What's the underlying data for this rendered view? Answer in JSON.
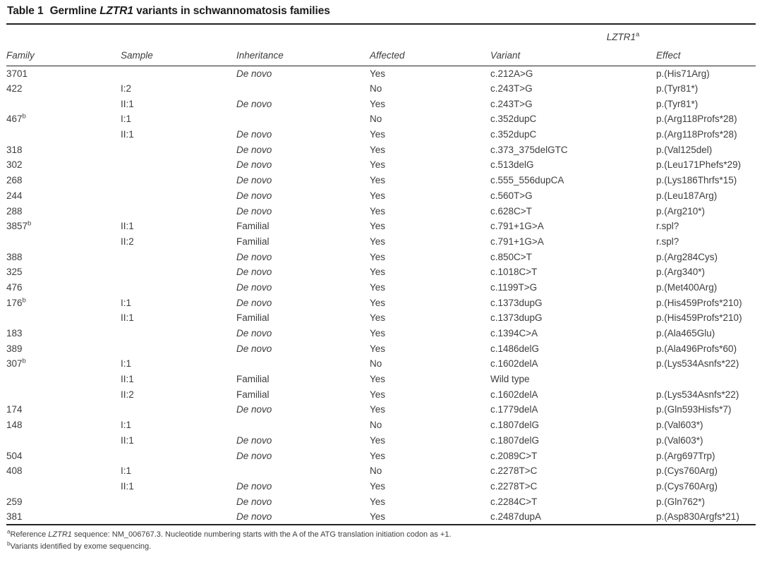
{
  "title": {
    "number": "Table 1",
    "pre_gene": "Germline",
    "gene": "LZTR1",
    "post_gene": "variants in schwannomatosis families"
  },
  "span_header": {
    "gene": "LZTR1",
    "sup": "a"
  },
  "columns": [
    "Family",
    "Sample",
    "Inheritance",
    "Affected",
    "Variant",
    "Effect"
  ],
  "rows": [
    {
      "family": "3701",
      "family_sup": "",
      "sample": "",
      "inheritance": "De novo",
      "inh_italic": true,
      "affected": "Yes",
      "variant": "c.212A>G",
      "effect": "p.(His71Arg)"
    },
    {
      "family": "422",
      "family_sup": "",
      "sample": "I:2",
      "inheritance": "",
      "inh_italic": false,
      "affected": "No",
      "variant": "c.243T>G",
      "effect": "p.(Tyr81*)"
    },
    {
      "family": "",
      "family_sup": "",
      "sample": "II:1",
      "inheritance": "De novo",
      "inh_italic": true,
      "affected": "Yes",
      "variant": "c.243T>G",
      "effect": "p.(Tyr81*)"
    },
    {
      "family": "467",
      "family_sup": "b",
      "sample": "I:1",
      "inheritance": "",
      "inh_italic": false,
      "affected": "No",
      "variant": "c.352dupC",
      "effect": "p.(Arg118Profs*28)"
    },
    {
      "family": "",
      "family_sup": "",
      "sample": "II:1",
      "inheritance": "De novo",
      "inh_italic": true,
      "affected": "Yes",
      "variant": "c.352dupC",
      "effect": "p.(Arg118Profs*28)"
    },
    {
      "family": "318",
      "family_sup": "",
      "sample": "",
      "inheritance": "De novo",
      "inh_italic": true,
      "affected": "Yes",
      "variant": "c.373_375delGTC",
      "effect": "p.(Val125del)"
    },
    {
      "family": "302",
      "family_sup": "",
      "sample": "",
      "inheritance": "De novo",
      "inh_italic": true,
      "affected": "Yes",
      "variant": "c.513delG",
      "effect": "p.(Leu171Phefs*29)"
    },
    {
      "family": "268",
      "family_sup": "",
      "sample": "",
      "inheritance": "De novo",
      "inh_italic": true,
      "affected": "Yes",
      "variant": "c.555_556dupCA",
      "effect": "p.(Lys186Thrfs*15)"
    },
    {
      "family": "244",
      "family_sup": "",
      "sample": "",
      "inheritance": "De novo",
      "inh_italic": true,
      "affected": "Yes",
      "variant": "c.560T>G",
      "effect": "p.(Leu187Arg)"
    },
    {
      "family": "288",
      "family_sup": "",
      "sample": "",
      "inheritance": "De novo",
      "inh_italic": true,
      "affected": "Yes",
      "variant": "c.628C>T",
      "effect": "p.(Arg210*)"
    },
    {
      "family": "3857",
      "family_sup": "b",
      "sample": "II:1",
      "inheritance": "Familial",
      "inh_italic": false,
      "affected": "Yes",
      "variant": "c.791+1G>A",
      "effect": "r.spl?"
    },
    {
      "family": "",
      "family_sup": "",
      "sample": "II:2",
      "inheritance": "Familial",
      "inh_italic": false,
      "affected": "Yes",
      "variant": "c.791+1G>A",
      "effect": "r.spl?"
    },
    {
      "family": "388",
      "family_sup": "",
      "sample": "",
      "inheritance": "De novo",
      "inh_italic": true,
      "affected": "Yes",
      "variant": "c.850C>T",
      "effect": "p.(Arg284Cys)"
    },
    {
      "family": "325",
      "family_sup": "",
      "sample": "",
      "inheritance": "De novo",
      "inh_italic": true,
      "affected": "Yes",
      "variant": "c.1018C>T",
      "effect": "p.(Arg340*)"
    },
    {
      "family": "476",
      "family_sup": "",
      "sample": "",
      "inheritance": "De novo",
      "inh_italic": true,
      "affected": "Yes",
      "variant": "c.1199T>G",
      "effect": "p.(Met400Arg)"
    },
    {
      "family": "176",
      "family_sup": "b",
      "sample": "I:1",
      "inheritance": "De novo",
      "inh_italic": true,
      "affected": "Yes",
      "variant": "c.1373dupG",
      "effect": "p.(His459Profs*210)"
    },
    {
      "family": "",
      "family_sup": "",
      "sample": "II:1",
      "inheritance": "Familial",
      "inh_italic": false,
      "affected": "Yes",
      "variant": "c.1373dupG",
      "effect": "p.(His459Profs*210)"
    },
    {
      "family": "183",
      "family_sup": "",
      "sample": "",
      "inheritance": "De novo",
      "inh_italic": true,
      "affected": "Yes",
      "variant": "c.1394C>A",
      "effect": "p.(Ala465Glu)"
    },
    {
      "family": "389",
      "family_sup": "",
      "sample": "",
      "inheritance": "De novo",
      "inh_italic": true,
      "affected": "Yes",
      "variant": "c.1486delG",
      "effect": "p.(Ala496Profs*60)"
    },
    {
      "family": "307",
      "family_sup": "b",
      "sample": "I:1",
      "inheritance": "",
      "inh_italic": false,
      "affected": "No",
      "variant": "c.1602delA",
      "effect": "p.(Lys534Asnfs*22)"
    },
    {
      "family": "",
      "family_sup": "",
      "sample": "II:1",
      "inheritance": "Familial",
      "inh_italic": false,
      "affected": "Yes",
      "variant": "Wild type",
      "effect": ""
    },
    {
      "family": "",
      "family_sup": "",
      "sample": "II:2",
      "inheritance": "Familial",
      "inh_italic": false,
      "affected": "Yes",
      "variant": "c.1602delA",
      "effect": "p.(Lys534Asnfs*22)"
    },
    {
      "family": "174",
      "family_sup": "",
      "sample": "",
      "inheritance": "De novo",
      "inh_italic": true,
      "affected": "Yes",
      "variant": "c.1779delA",
      "effect": "p.(Gln593Hisfs*7)"
    },
    {
      "family": "148",
      "family_sup": "",
      "sample": "I:1",
      "inheritance": "",
      "inh_italic": false,
      "affected": "No",
      "variant": "c.1807delG",
      "effect": "p.(Val603*)"
    },
    {
      "family": "",
      "family_sup": "",
      "sample": "II:1",
      "inheritance": "De novo",
      "inh_italic": true,
      "affected": "Yes",
      "variant": "c.1807delG",
      "effect": "p.(Val603*)"
    },
    {
      "family": "504",
      "family_sup": "",
      "sample": "",
      "inheritance": "De novo",
      "inh_italic": true,
      "affected": "Yes",
      "variant": "c.2089C>T",
      "effect": "p.(Arg697Trp)"
    },
    {
      "family": "408",
      "family_sup": "",
      "sample": "I:1",
      "inheritance": "",
      "inh_italic": false,
      "affected": "No",
      "variant": "c.2278T>C",
      "effect": "p.(Cys760Arg)"
    },
    {
      "family": "",
      "family_sup": "",
      "sample": "II:1",
      "inheritance": "De novo",
      "inh_italic": true,
      "affected": "Yes",
      "variant": "c.2278T>C",
      "effect": "p.(Cys760Arg)"
    },
    {
      "family": "259",
      "family_sup": "",
      "sample": "",
      "inheritance": "De novo",
      "inh_italic": true,
      "affected": "Yes",
      "variant": "c.2284C>T",
      "effect": "p.(Gln762*)"
    },
    {
      "family": "381",
      "family_sup": "",
      "sample": "",
      "inheritance": "De novo",
      "inh_italic": true,
      "affected": "Yes",
      "variant": "c.2487dupA",
      "effect": "p.(Asp830Argfs*21)"
    }
  ],
  "footnotes": [
    {
      "sup": "a",
      "pre": "Reference",
      "gene": "LZTR1",
      "post": "sequence: NM_006767.3. Nucleotide numbering starts with the A of the ATG translation initiation codon as +1."
    },
    {
      "sup": "b",
      "text": "Variants identified by exome sequencing."
    }
  ]
}
